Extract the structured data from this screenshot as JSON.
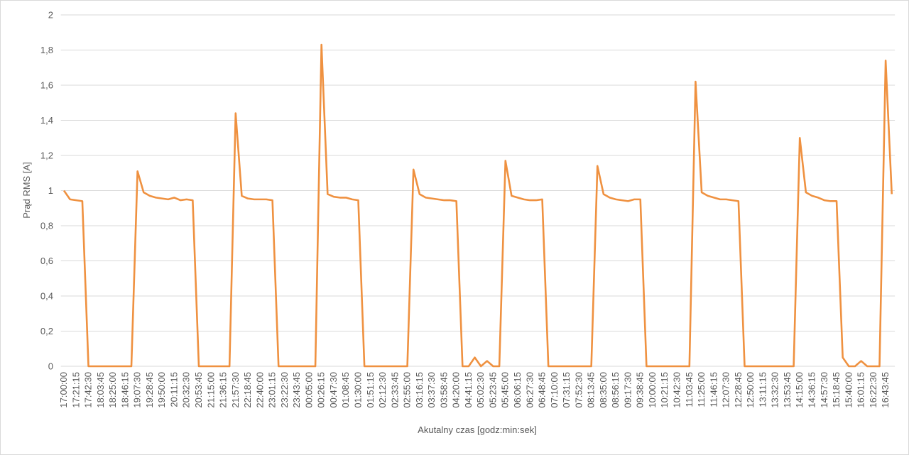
{
  "chart_data": {
    "type": "line",
    "y_label": "Prąd RMS [A]",
    "x_label": "Akutalny czas [godz:min:sek]",
    "color": "#ef9140",
    "grid": true,
    "ylim": [
      0,
      2
    ],
    "yticks": [
      0,
      {
        "value": 0.2,
        "label": "0,2"
      },
      {
        "value": 0.4,
        "label": "0,4"
      },
      {
        "value": 0.6,
        "label": "0,6"
      },
      {
        "value": 0.8,
        "label": "0,8"
      },
      1,
      {
        "value": 1.2,
        "label": "1,2"
      },
      {
        "value": 1.4,
        "label": "1,4"
      },
      {
        "value": 1.6,
        "label": "1,6"
      },
      {
        "value": 1.8,
        "label": "1,8"
      },
      2
    ],
    "categories": [
      "17:00:00",
      null,
      "17:21:15",
      null,
      "17:42:30",
      null,
      "18:03:45",
      null,
      "18:25:00",
      null,
      "18:46:15",
      null,
      "19:07:30",
      null,
      "19:28:45",
      null,
      "19:50:00",
      null,
      "20:11:15",
      null,
      "20:32:30",
      null,
      "20:53:45",
      null,
      "21:15:00",
      null,
      "21:36:15",
      null,
      "21:57:30",
      null,
      "22:18:45",
      null,
      "22:40:00",
      null,
      "23:01:15",
      null,
      "23:22:30",
      null,
      "23:43:45",
      null,
      "00:05:00",
      null,
      "00:26:15",
      null,
      "00:47:30",
      null,
      "01:08:45",
      null,
      "01:30:00",
      null,
      "01:51:15",
      null,
      "02:12:30",
      null,
      "02:33:45",
      null,
      "02:55:00",
      null,
      "03:16:15",
      null,
      "03:37:30",
      null,
      "03:58:45",
      null,
      "04:20:00",
      null,
      "04:41:15",
      null,
      "05:02:30",
      null,
      "05:23:45",
      null,
      "05:45:00",
      null,
      "06:06:15",
      null,
      "06:27:30",
      null,
      "06:48:45",
      null,
      "07:10:00",
      null,
      "07:31:15",
      null,
      "07:52:30",
      null,
      "08:13:45",
      null,
      "08:35:00",
      null,
      "08:56:15",
      null,
      "09:17:30",
      null,
      "09:38:45",
      null,
      "10:00:00",
      null,
      "10:21:15",
      null,
      "10:42:30",
      null,
      "11:03:45",
      null,
      "11:25:00",
      null,
      "11:46:15",
      null,
      "12:07:30",
      null,
      "12:28:45",
      null,
      "12:50:00",
      null,
      "13:11:15",
      null,
      "13:32:30",
      null,
      "13:53:45",
      null,
      "14:15:00",
      null,
      "14:36:15",
      null,
      "14:57:30",
      null,
      "15:18:45",
      null,
      "15:40:00",
      null,
      "16:01:15",
      null,
      "16:22:30",
      null,
      "16:43:45",
      null
    ],
    "values": [
      1.0,
      0.95,
      0.945,
      0.94,
      0,
      0,
      0,
      0,
      0,
      0,
      0,
      0,
      1.11,
      0.99,
      0.97,
      0.96,
      0.955,
      0.95,
      0.96,
      0.945,
      0.95,
      0.945,
      0,
      0,
      0,
      0,
      0,
      0,
      1.44,
      0.97,
      0.955,
      0.95,
      0.95,
      0.95,
      0.945,
      0,
      0,
      0,
      0,
      0,
      0,
      0,
      1.83,
      0.98,
      0.965,
      0.96,
      0.96,
      0.95,
      0.945,
      0,
      0,
      0,
      0,
      0,
      0,
      0,
      0,
      1.12,
      0.98,
      0.96,
      0.955,
      0.95,
      0.945,
      0.945,
      0.94,
      0,
      0,
      0.05,
      0,
      0.03,
      0,
      0,
      1.17,
      0.97,
      0.96,
      0.95,
      0.945,
      0.945,
      0.95,
      0,
      0,
      0,
      0,
      0,
      0,
      0,
      0,
      1.14,
      0.98,
      0.96,
      0.95,
      0.945,
      0.94,
      0.95,
      0.95,
      0,
      0,
      0,
      0,
      0,
      0,
      0,
      0,
      1.62,
      0.99,
      0.97,
      0.96,
      0.95,
      0.95,
      0.945,
      0.94,
      0,
      0,
      0,
      0,
      0,
      0,
      0,
      0,
      0,
      1.3,
      0.99,
      0.97,
      0.96,
      0.945,
      0.94,
      0.94,
      0.05,
      0,
      0,
      0.03,
      0,
      0,
      0,
      1.74,
      0.98
    ]
  }
}
